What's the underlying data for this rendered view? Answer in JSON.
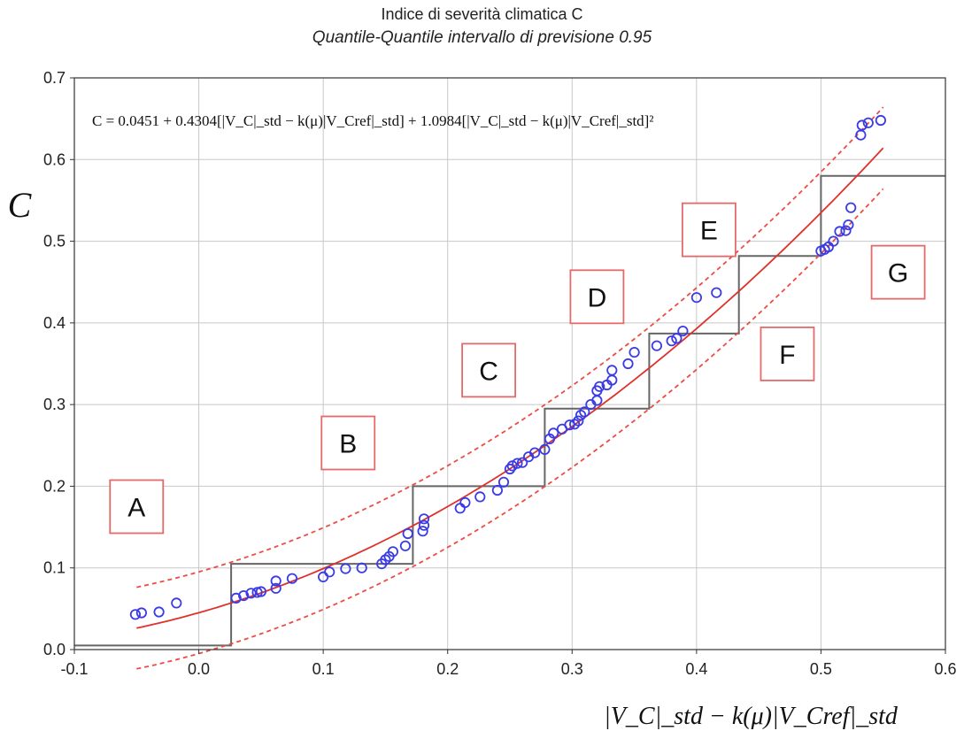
{
  "chart_data": {
    "type": "scatter",
    "title": "Indice di severità climatica C",
    "subtitle": "Quantile-Quantile intervallo di previsione 0.95",
    "ylabel": "C",
    "xlabel": "|V_C|_std − k(μ)|V_Cref|_std",
    "xlim": [
      -0.1,
      0.6
    ],
    "ylim": [
      0.0,
      0.7
    ],
    "xticks": [
      "-0.1",
      "0.0",
      "0.1",
      "0.2",
      "0.3",
      "0.4",
      "0.5",
      "0.6"
    ],
    "yticks": [
      "0.0",
      "0.1",
      "0.2",
      "0.3",
      "0.4",
      "0.5",
      "0.6",
      "0.7"
    ],
    "xtick_values": [
      -0.1,
      0.0,
      0.1,
      0.2,
      0.3,
      0.4,
      0.5,
      0.6
    ],
    "ytick_values": [
      0.0,
      0.1,
      0.2,
      0.3,
      0.4,
      0.5,
      0.6,
      0.7
    ],
    "grid": true,
    "formula": "C = 0.0451 + 0.4304[|V_C|_std − k(μ)|V_Cref|_std] + 1.0984[|V_C|_std − k(μ)|V_Cref|_std]²",
    "fit": {
      "a": 0.0451,
      "b": 0.4304,
      "c": 1.0984,
      "x_range": [
        -0.05,
        0.55
      ],
      "color": "#e0302a"
    },
    "prediction_band": {
      "offset": 0.05,
      "color": "#ee4b45",
      "dash": true
    },
    "points": [
      [
        -0.051,
        0.043
      ],
      [
        -0.046,
        0.045
      ],
      [
        -0.032,
        0.046
      ],
      [
        -0.018,
        0.057
      ],
      [
        0.03,
        0.063
      ],
      [
        0.036,
        0.066
      ],
      [
        0.042,
        0.069
      ],
      [
        0.047,
        0.07
      ],
      [
        0.05,
        0.071
      ],
      [
        0.062,
        0.075
      ],
      [
        0.062,
        0.084
      ],
      [
        0.075,
        0.087
      ],
      [
        0.1,
        0.089
      ],
      [
        0.105,
        0.095
      ],
      [
        0.118,
        0.099
      ],
      [
        0.131,
        0.1
      ],
      [
        0.147,
        0.105
      ],
      [
        0.15,
        0.11
      ],
      [
        0.153,
        0.114
      ],
      [
        0.156,
        0.12
      ],
      [
        0.166,
        0.127
      ],
      [
        0.168,
        0.142
      ],
      [
        0.18,
        0.145
      ],
      [
        0.181,
        0.152
      ],
      [
        0.181,
        0.16
      ],
      [
        0.21,
        0.173
      ],
      [
        0.214,
        0.18
      ],
      [
        0.226,
        0.187
      ],
      [
        0.24,
        0.195
      ],
      [
        0.245,
        0.205
      ],
      [
        0.25,
        0.221
      ],
      [
        0.252,
        0.225
      ],
      [
        0.256,
        0.228
      ],
      [
        0.26,
        0.229
      ],
      [
        0.265,
        0.236
      ],
      [
        0.27,
        0.241
      ],
      [
        0.278,
        0.245
      ],
      [
        0.282,
        0.258
      ],
      [
        0.285,
        0.265
      ],
      [
        0.292,
        0.27
      ],
      [
        0.298,
        0.275
      ],
      [
        0.302,
        0.276
      ],
      [
        0.305,
        0.28
      ],
      [
        0.307,
        0.287
      ],
      [
        0.31,
        0.291
      ],
      [
        0.315,
        0.3
      ],
      [
        0.32,
        0.305
      ],
      [
        0.32,
        0.317
      ],
      [
        0.322,
        0.322
      ],
      [
        0.328,
        0.324
      ],
      [
        0.332,
        0.33
      ],
      [
        0.332,
        0.342
      ],
      [
        0.345,
        0.35
      ],
      [
        0.35,
        0.364
      ],
      [
        0.368,
        0.372
      ],
      [
        0.38,
        0.378
      ],
      [
        0.384,
        0.381
      ],
      [
        0.389,
        0.39
      ],
      [
        0.4,
        0.431
      ],
      [
        0.416,
        0.437
      ],
      [
        0.5,
        0.488
      ],
      [
        0.503,
        0.49
      ],
      [
        0.506,
        0.493
      ],
      [
        0.51,
        0.5
      ],
      [
        0.515,
        0.512
      ],
      [
        0.52,
        0.513
      ],
      [
        0.522,
        0.52
      ],
      [
        0.524,
        0.541
      ],
      [
        0.532,
        0.63
      ],
      [
        0.533,
        0.642
      ],
      [
        0.538,
        0.645
      ],
      [
        0.548,
        0.648
      ]
    ],
    "point_color": "#3b3be6",
    "step_lines": [
      [
        [
          -0.1,
          0.005
        ],
        [
          0.026,
          0.005
        ],
        [
          0.026,
          0.105
        ],
        [
          0.172,
          0.105
        ],
        [
          0.172,
          0.2
        ],
        [
          0.278,
          0.2
        ],
        [
          0.278,
          0.295
        ],
        [
          0.362,
          0.295
        ],
        [
          0.362,
          0.387
        ],
        [
          0.434,
          0.387
        ],
        [
          0.434,
          0.482
        ],
        [
          0.5,
          0.482
        ],
        [
          0.5,
          0.58
        ],
        [
          0.6,
          0.58
        ]
      ]
    ],
    "step_color": "#666666",
    "regions": [
      {
        "label": "A",
        "x": -0.05,
        "y": 0.175
      },
      {
        "label": "B",
        "x": 0.12,
        "y": 0.253
      },
      {
        "label": "C",
        "x": 0.233,
        "y": 0.342
      },
      {
        "label": "D",
        "x": 0.32,
        "y": 0.432
      },
      {
        "label": "E",
        "x": 0.41,
        "y": 0.514
      },
      {
        "label": "F",
        "x": 0.473,
        "y": 0.362
      },
      {
        "label": "G",
        "x": 0.562,
        "y": 0.462
      }
    ],
    "region_border_color": "#e46a6a"
  }
}
